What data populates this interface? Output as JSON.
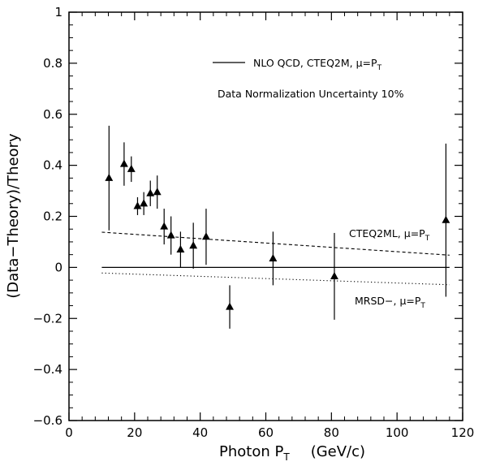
{
  "chart_data": {
    "type": "scatter",
    "title": "",
    "xlabel": "Photon P",
    "xlabel_sub": "T",
    "xlabel_units": "(GeV/c)",
    "ylabel": "(Data−Theory)/Theory",
    "xlim": [
      0,
      120
    ],
    "ylim": [
      -0.6,
      1.0
    ],
    "x_ticks": [
      0,
      20,
      40,
      60,
      80,
      100,
      120
    ],
    "y_ticks": [
      -0.6,
      -0.4,
      -0.2,
      0,
      0.2,
      0.4,
      0.6,
      0.8,
      1
    ],
    "x_tick_labels": [
      "0",
      "20",
      "40",
      "60",
      "80",
      "100",
      "120"
    ],
    "y_tick_labels": [
      "−0.6",
      "−0.4",
      "−0.2",
      "0",
      "0.2",
      "0.4",
      "0.6",
      "0.8",
      "1"
    ],
    "grid": false,
    "series": [
      {
        "name": "",
        "marker": "triangle",
        "color": "#000000",
        "points": [
          {
            "x": 12.2,
            "y": 0.35,
            "err": 0.205
          },
          {
            "x": 16.8,
            "y": 0.405,
            "err": 0.085
          },
          {
            "x": 19.0,
            "y": 0.385,
            "err": 0.05
          },
          {
            "x": 20.9,
            "y": 0.24,
            "err": 0.035
          },
          {
            "x": 22.8,
            "y": 0.25,
            "err": 0.045
          },
          {
            "x": 24.8,
            "y": 0.29,
            "err": 0.05
          },
          {
            "x": 26.9,
            "y": 0.295,
            "err": 0.065
          },
          {
            "x": 29.0,
            "y": 0.16,
            "err": 0.07
          },
          {
            "x": 31.1,
            "y": 0.125,
            "err": 0.075
          },
          {
            "x": 34.0,
            "y": 0.07,
            "err": 0.07
          },
          {
            "x": 37.9,
            "y": 0.085,
            "err": 0.09
          },
          {
            "x": 41.8,
            "y": 0.12,
            "err": 0.11
          },
          {
            "x": 49.0,
            "y": -0.155,
            "err": 0.085
          },
          {
            "x": 62.2,
            "y": 0.035,
            "err": 0.105
          },
          {
            "x": 80.9,
            "y": -0.035,
            "err": 0.17
          },
          {
            "x": 114.9,
            "y": 0.185,
            "err": 0.3
          }
        ]
      }
    ],
    "reference_lines": [
      {
        "name": "NLO QCD, CTEQ2M, μ=P",
        "style": "solid",
        "x": [
          10,
          116
        ],
        "y": [
          0,
          0
        ]
      },
      {
        "name": "CTEQ2ML, μ=P",
        "style": "dashed",
        "x": [
          10,
          116
        ],
        "y": [
          0.138,
          0.048
        ]
      },
      {
        "name": "MRSD−, μ=P",
        "style": "dotted",
        "x": [
          10,
          116
        ],
        "y": [
          -0.022,
          -0.068
        ]
      }
    ],
    "annotations": {
      "legend_text": "NLO QCD, CTEQ2M, μ=P",
      "normalization": "Data Normalization Uncertainty 10%",
      "cteq2ml_label": "CTEQ2ML, μ=P",
      "mrsd_label": "MRSD−, μ=P",
      "subscript": "T"
    }
  }
}
